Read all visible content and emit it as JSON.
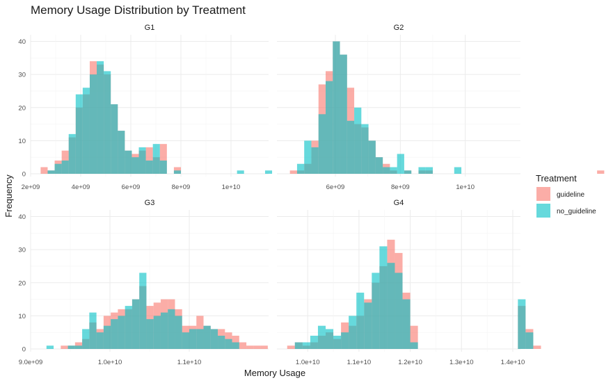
{
  "chart_data": {
    "type": "histogram",
    "title": "Memory Usage Distribution by Treatment",
    "xlabel": "Memory Usage",
    "ylabel": "Frequency",
    "ylim": [
      0,
      42
    ],
    "yticks": [
      0,
      10,
      20,
      30,
      40
    ],
    "grid": true,
    "legend": {
      "title": "Treatment",
      "position": "right",
      "entries": [
        {
          "name": "guideline",
          "color": "#F8766D"
        },
        {
          "name": "no_guideline",
          "color": "#00BFC4"
        }
      ]
    },
    "panels": [
      {
        "name": "G1",
        "xlim": [
          2000000000.0,
          11500000000.0
        ],
        "xticks": [
          {
            "v": 2000000000.0,
            "label": "2e+09"
          },
          {
            "v": 4000000000.0,
            "label": "4e+09"
          },
          {
            "v": 6000000000.0,
            "label": "6e+09"
          },
          {
            "v": 8000000000.0,
            "label": "8e+09"
          },
          {
            "v": 10000000000.0,
            "label": "1e+10"
          }
        ],
        "bins": {
          "start": 2400000000.0,
          "width": 280000000.0
        },
        "series": [
          {
            "name": "guideline",
            "counts": [
              2,
              1,
              4,
              7,
              11,
              20,
              24,
              34,
              33,
              30,
              21,
              13,
              7,
              6,
              7,
              8,
              5,
              9,
              0,
              2,
              0,
              0,
              0,
              0,
              0,
              0,
              0,
              0,
              0,
              0,
              0,
              0
            ]
          },
          {
            "name": "no_guideline",
            "counts": [
              0,
              1,
              3,
              4,
              12,
              24,
              26,
              30,
              34,
              31,
              21,
              13,
              7,
              5,
              8,
              4,
              9,
              4,
              0,
              1,
              0,
              0,
              0,
              0,
              0,
              0,
              0,
              0,
              1,
              0,
              0,
              0,
              1
            ]
          }
        ]
      },
      {
        "name": "G2",
        "xlim": [
          4200000000.0,
          11700000000.0
        ],
        "xticks": [
          {
            "v": 6000000000.0,
            "label": "6e+09"
          },
          {
            "v": 8000000000.0,
            "label": "8e+09"
          },
          {
            "v": 10000000000.0,
            "label": "1e+10"
          }
        ],
        "bins": {
          "start": 4600000000.0,
          "width": 220000000.0
        },
        "series": [
          {
            "name": "guideline",
            "counts": [
              1,
              1,
              3,
              10,
              27,
              31,
              40,
              36,
              26,
              15,
              14,
              10,
              5,
              3,
              1,
              0,
              1,
              0,
              1,
              1,
              0,
              0,
              0,
              0,
              0,
              0,
              0,
              0,
              0,
              0,
              0,
              0,
              0,
              0,
              0,
              0,
              0,
              0,
              0,
              0,
              0,
              0,
              0,
              1
            ]
          },
          {
            "name": "no_guideline",
            "counts": [
              0,
              3,
              10,
              8,
              18,
              28,
              40,
              36,
              16,
              20,
              15,
              10,
              5,
              2,
              2,
              6,
              1,
              0,
              2,
              2,
              0,
              0,
              0,
              2,
              0,
              0
            ]
          }
        ]
      },
      {
        "name": "G3",
        "xlim": [
          9000000000.0,
          12000000000.0
        ],
        "xticks": [
          {
            "v": 9000000000.0,
            "label": "9.0e+09"
          },
          {
            "v": 10000000000.0,
            "label": "1.0e+10"
          },
          {
            "v": 11000000000.0,
            "label": "1.1e+10"
          }
        ],
        "bins": {
          "start": 9200000000.0,
          "width": 90000000.0
        },
        "series": [
          {
            "name": "guideline",
            "counts": [
              0,
              0,
              1,
              1,
              2,
              3,
              8,
              6,
              10,
              11,
              12,
              12,
              15,
              19,
              13,
              14,
              15,
              15,
              12,
              7,
              7,
              10,
              7,
              6,
              6,
              5,
              4,
              2,
              1,
              1,
              1
            ]
          },
          {
            "name": "no_guideline",
            "counts": [
              1,
              0,
              0,
              1,
              1,
              6,
              11,
              5,
              7,
              9,
              10,
              13,
              15,
              23,
              9,
              10,
              11,
              12,
              10,
              5,
              6,
              6,
              7,
              6,
              4,
              3,
              2
            ]
          }
        ]
      },
      {
        "name": "G4",
        "xlim": [
          9400000000.0,
          14150000000.0
        ],
        "xticks": [
          {
            "v": 10000000000.0,
            "label": "1.0e+10"
          },
          {
            "v": 11000000000.0,
            "label": "1.1e+10"
          },
          {
            "v": 12000000000.0,
            "label": "1.2e+10"
          },
          {
            "v": 13000000000.0,
            "label": "1.3e+10"
          },
          {
            "v": 14000000000.0,
            "label": "1.4e+10"
          }
        ],
        "bins": {
          "start": 9600000000.0,
          "width": 150000000.0
        },
        "series": [
          {
            "name": "guideline",
            "counts": [
              1,
              2,
              1,
              2,
              4,
              5,
              3,
              8,
              7,
              10,
              15,
              20,
              25,
              33,
              29,
              17,
              7,
              0,
              0,
              0,
              0,
              0,
              0,
              0,
              0,
              0,
              0,
              0,
              0,
              0,
              13,
              6,
              1
            ]
          },
          {
            "name": "no_guideline",
            "counts": [
              0,
              2,
              2,
              4,
              7,
              6,
              4,
              5,
              10,
              17,
              14,
              23,
              31,
              26,
              23,
              15,
              2,
              0,
              0,
              0,
              0,
              0,
              0,
              0,
              0,
              0,
              0,
              0,
              0,
              0,
              15,
              5
            ]
          }
        ]
      }
    ]
  }
}
